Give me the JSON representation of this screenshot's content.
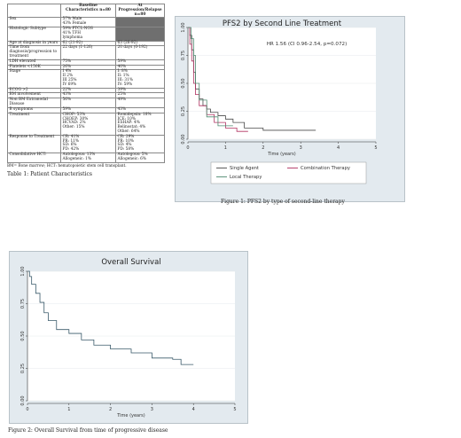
{
  "table": {
    "header": [
      "",
      "Baseline Characteristics n=80",
      "At Progression/Relapse n=80"
    ],
    "rows": [
      [
        "Sex",
        "57% Male\n43% Female",
        ""
      ],
      [
        "Histologic Subtype",
        "59% PTCL-NOS\n41% TFH\nlymphoma",
        ""
      ],
      [
        "Age at diagnosis in years",
        "62 (21-92)",
        "63 (26-92)"
      ],
      [
        "Time from diagnosis/progression to treatment",
        "22 days (1-126)",
        "20 days (0-192)"
      ],
      [
        "LDH elevated",
        "75%",
        "59%"
      ],
      [
        "Platelets <150K",
        "26%",
        "40%"
      ],
      [
        "Stage",
        "I 4%\nII 2%\nIII 25%\nIV 69%",
        "I: 8%\nII: 1%\nIII: 31%\nIV: 59%"
      ],
      [
        "ECOG >2",
        "22%",
        "39%"
      ],
      [
        "BM involvement",
        "43%",
        "25%"
      ],
      [
        "Non BM Extranodal Disease",
        "56%",
        "49%"
      ],
      [
        "B symptoms",
        "59%",
        "43%"
      ],
      [
        "Treatment",
        "CHOP: 53%\nCHOEP: 30%\nHCVAD: 2%\nOther: 15%",
        "Romidepsin: 18%\nICE: 10%\nESHAP: 4%\nBelinostat: 4%\nOther: 64%"
      ],
      [
        "Response to Treatment",
        "CR: 41%\nPR: 11%\nSD: 6%\nPD: 42%",
        "CR: 29%\nPR: 10%\nSD: 4%\nPD: 58%"
      ],
      [
        "Consolidative HCT:",
        "Autologous: 13%\nAllogeneic: 1%",
        "Autologous: 5%\nAllogeneic: 6%"
      ]
    ],
    "footnote": "BM= Bone marrow; HCT: hematopoietic stem cell transplant.",
    "caption": "Table 1: Patient Characteristics"
  },
  "figure1": {
    "caption": "Figure 1: PFS2 by type of second-line therapy"
  },
  "figure2": {
    "caption": "Figure 2: Overall Survival from time of progressive disease"
  },
  "chart_data": [
    {
      "type": "line",
      "title": "PFS2 by Second Line Treatment",
      "xlabel": "Time (years)",
      "ylabel": "",
      "xlim": [
        0,
        5
      ],
      "ylim": [
        0,
        1
      ],
      "xticks": [
        "0",
        "1",
        "2",
        "3",
        "4",
        "5"
      ],
      "yticks": [
        "0.00",
        "0.25",
        "0.50",
        "0.75",
        "1.00"
      ],
      "annotation": "HR 1.56 (CI 0.96-2.54, p=0.072)",
      "legend_position": "bottom",
      "series": [
        {
          "name": "Single Agent",
          "color": "#4a4a4a",
          "x": [
            0,
            0.05,
            0.1,
            0.15,
            0.2,
            0.3,
            0.4,
            0.5,
            0.6,
            0.8,
            1.0,
            1.2,
            1.5,
            2.0,
            3.4
          ],
          "y": [
            1.0,
            0.93,
            0.8,
            0.6,
            0.45,
            0.36,
            0.3,
            0.27,
            0.24,
            0.21,
            0.18,
            0.15,
            0.1,
            0.08,
            0.08
          ]
        },
        {
          "name": "Combination Therapy",
          "color": "#b03060",
          "x": [
            0,
            0.05,
            0.1,
            0.15,
            0.2,
            0.3,
            0.5,
            0.7,
            1.0,
            1.3,
            1.6
          ],
          "y": [
            1.0,
            0.85,
            0.7,
            0.5,
            0.4,
            0.3,
            0.22,
            0.15,
            0.1,
            0.07,
            0.07
          ]
        },
        {
          "name": "Local Therapy",
          "color": "#4f8a70",
          "x": [
            0,
            0.08,
            0.15,
            0.2,
            0.3,
            0.5,
            0.8,
            1.2
          ],
          "y": [
            1.0,
            0.9,
            0.75,
            0.5,
            0.35,
            0.2,
            0.12,
            0.12
          ]
        }
      ]
    },
    {
      "type": "line",
      "title": "Overall Survival",
      "xlabel": "Time (years)",
      "ylabel": "",
      "xlim": [
        0,
        5
      ],
      "ylim": [
        0,
        1
      ],
      "xticks": [
        "0",
        "1",
        "2",
        "3",
        "4",
        "5"
      ],
      "yticks": [
        "0.00",
        "0.25",
        "0.50",
        "0.75",
        "1.00"
      ],
      "series": [
        {
          "name": "",
          "color": "#3a5a6a",
          "x": [
            0,
            0.05,
            0.1,
            0.2,
            0.3,
            0.4,
            0.5,
            0.7,
            1.0,
            1.3,
            1.6,
            2.0,
            2.5,
            3.0,
            3.5,
            3.7,
            4.0
          ],
          "y": [
            1.0,
            0.96,
            0.9,
            0.83,
            0.76,
            0.68,
            0.62,
            0.55,
            0.52,
            0.47,
            0.43,
            0.4,
            0.37,
            0.33,
            0.32,
            0.28,
            0.28
          ]
        }
      ]
    }
  ]
}
